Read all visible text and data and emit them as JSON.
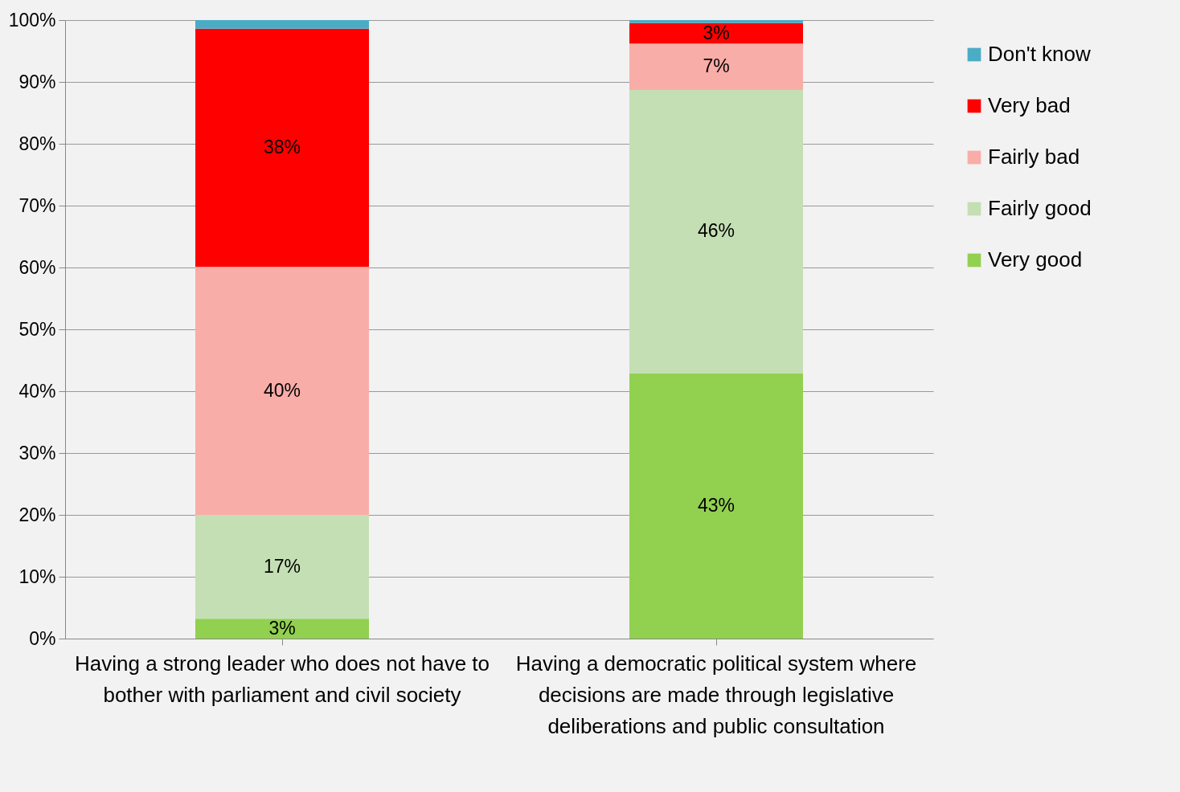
{
  "chart_data": {
    "type": "bar",
    "stacked": true,
    "categories": [
      "Having a strong leader who does not have to bother with parliament and civil society",
      "Having a democratic political system where decisions are made through legislative deliberations and public consultation"
    ],
    "series": [
      {
        "name": "Very good",
        "color": "#92d050",
        "values": [
          3.2,
          42.9
        ],
        "value_labels": [
          "3%",
          "43%"
        ]
      },
      {
        "name": "Fairly good",
        "color": "#c4dfb3",
        "values": [
          16.8,
          45.8
        ],
        "value_labels": [
          "17%",
          "46%"
        ]
      },
      {
        "name": "Fairly bad",
        "color": "#f9ada8",
        "values": [
          40.1,
          7.5
        ],
        "value_labels": [
          "40%",
          "7%"
        ]
      },
      {
        "name": "Very bad",
        "color": "#ff0000",
        "values": [
          38.5,
          3.3
        ],
        "value_labels": [
          "38%",
          "3%"
        ]
      },
      {
        "name": "Don't know",
        "color": "#4bacc6",
        "values": [
          1.4,
          0.5
        ],
        "value_labels": [
          null,
          null
        ]
      }
    ],
    "ylim": [
      0,
      100
    ],
    "yticks": [
      {
        "value": 0,
        "label": "0%"
      },
      {
        "value": 10,
        "label": "10%"
      },
      {
        "value": 20,
        "label": "20%"
      },
      {
        "value": 30,
        "label": "30%"
      },
      {
        "value": 40,
        "label": "40%"
      },
      {
        "value": 50,
        "label": "50%"
      },
      {
        "value": 60,
        "label": "60%"
      },
      {
        "value": 70,
        "label": "70%"
      },
      {
        "value": 80,
        "label": "80%"
      },
      {
        "value": 90,
        "label": "90%"
      },
      {
        "value": 100,
        "label": "100%"
      }
    ],
    "grid": "y",
    "legend": "right"
  }
}
